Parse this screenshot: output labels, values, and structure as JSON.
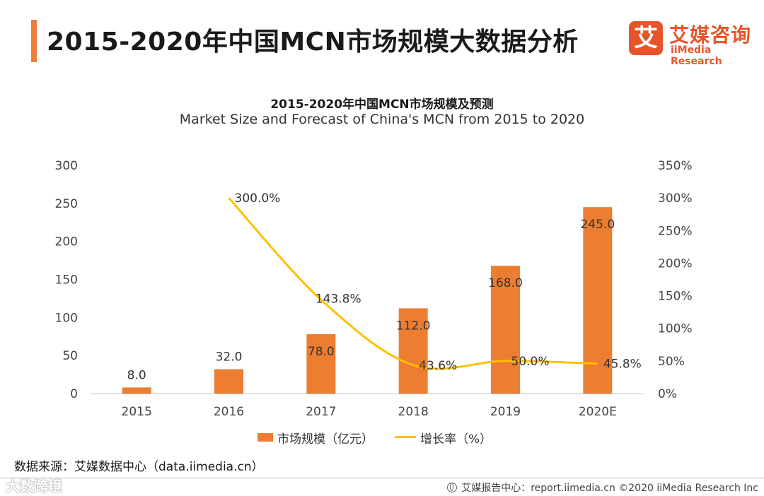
{
  "page": {
    "title": "2015-2020年中国MCN市场规模大数据分析",
    "accent_color": "#f07c3c"
  },
  "logo": {
    "mark": "艾",
    "cn": "艾媒咨询",
    "en": "iiMedia Research",
    "color": "#e8542a"
  },
  "chart_data": {
    "type": "bar",
    "title": "2015-2020年中国MCN市场规模及预测",
    "subtitle": "Market Size and Forecast of China's MCN from 2015 to 2020",
    "categories": [
      "2015",
      "2016",
      "2017",
      "2018",
      "2019",
      "2020E"
    ],
    "series": [
      {
        "name": "市场规模（亿元）",
        "type": "bar",
        "axis": "left",
        "color": "#ed7d31",
        "values": [
          8.0,
          32.0,
          78.0,
          112.0,
          168.0,
          245.0
        ],
        "labels": [
          "8.0",
          "32.0",
          "78.0",
          "112.0",
          "168.0",
          "245.0"
        ]
      },
      {
        "name": "增长率（%）",
        "type": "line",
        "axis": "right",
        "color": "#ffc000",
        "values": [
          null,
          300.0,
          143.8,
          43.6,
          50.0,
          45.8
        ],
        "labels": [
          "",
          "300.0%",
          "143.8%",
          "43.6%",
          "50.0%",
          "45.8%"
        ]
      }
    ],
    "ylim": [
      0,
      300
    ],
    "yticks": [
      "0",
      "50",
      "100",
      "150",
      "200",
      "250",
      "300"
    ],
    "y2lim": [
      0,
      350
    ],
    "y2ticks": [
      "0%",
      "50%",
      "100%",
      "150%",
      "200%",
      "250%",
      "300%",
      "350%"
    ],
    "grid": false,
    "legend": "bottom"
  },
  "source": "数据来源：艾媒数据中心（data.iimedia.cn）",
  "watermark": "大数跨境",
  "footer": "艾媒报告中心：report.iimedia.cn  ©2020  iiMedia Research  Inc"
}
